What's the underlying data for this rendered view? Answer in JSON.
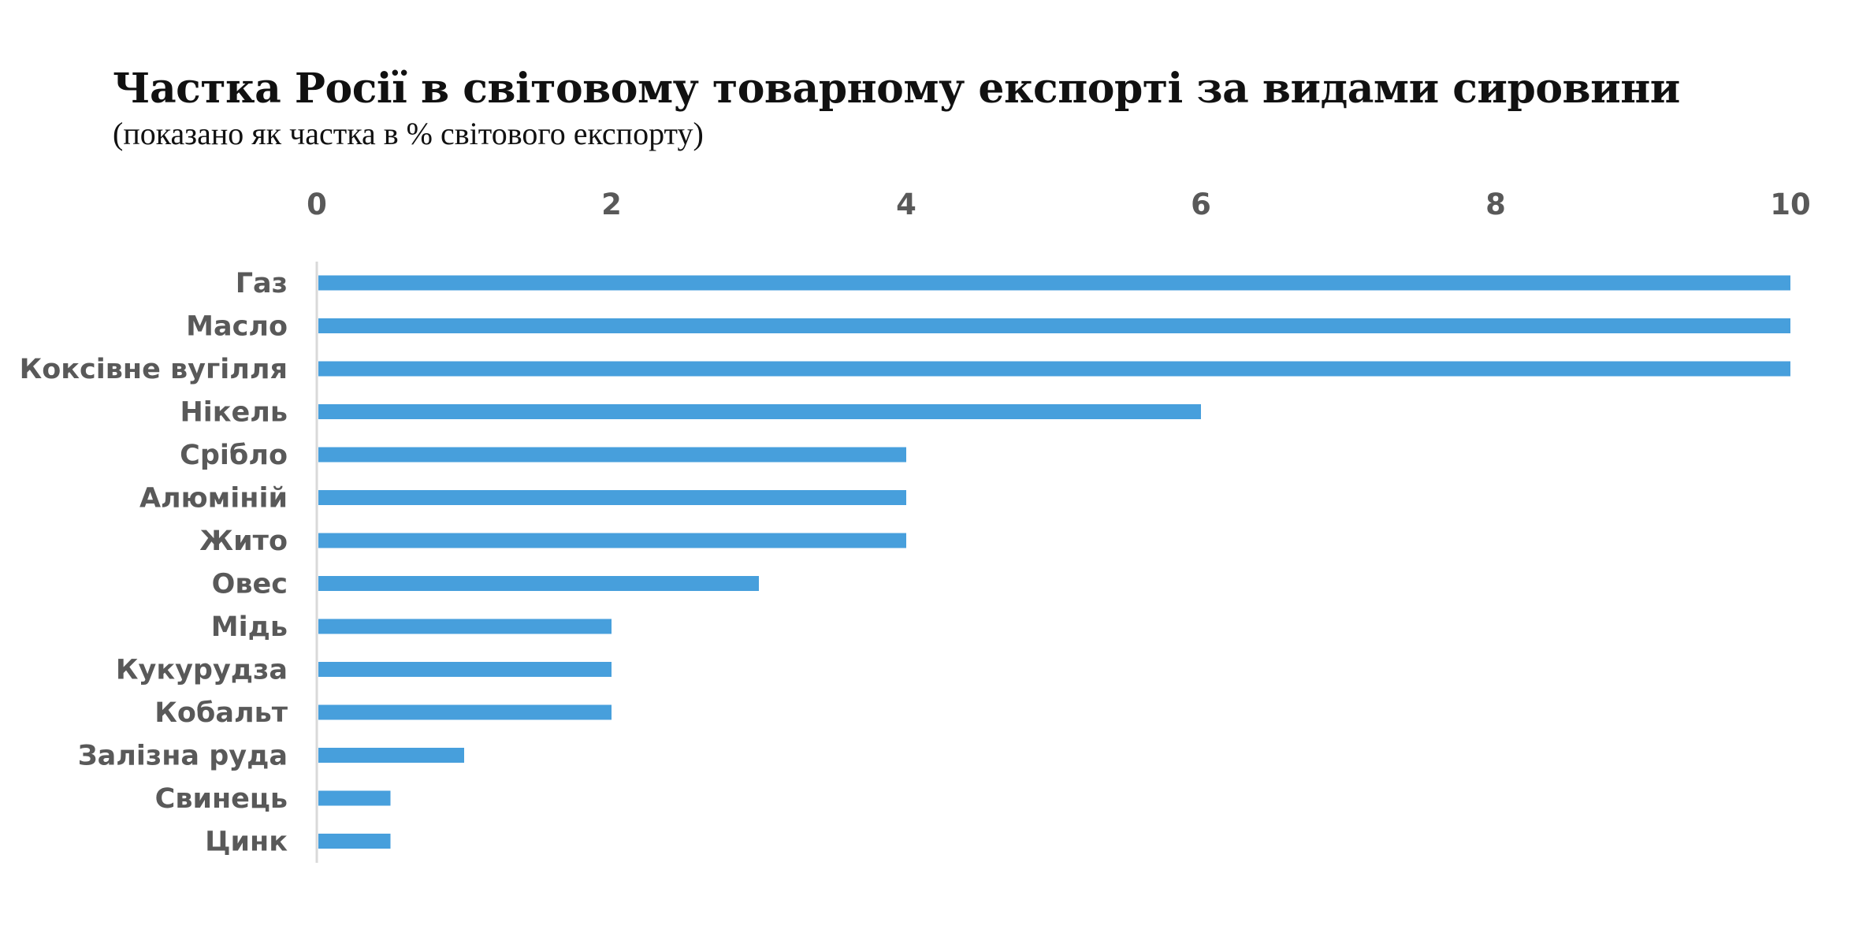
{
  "chart_data": {
    "type": "bar",
    "orientation": "horizontal",
    "title": "Частка Росії в світовому товарному експорті за видами сировини",
    "subtitle": "(показано як частка в % світового експорту)",
    "xlim": [
      0,
      10
    ],
    "x_ticks": [
      "0",
      "2",
      "4",
      "6",
      "8",
      "10"
    ],
    "x_axis_position": "top",
    "grid": false,
    "categories": [
      "Газ",
      "Масло",
      "Коксівне вугілля",
      "Нікель",
      "Срібло",
      "Алюміній",
      "Жито",
      "Овес",
      "Мідь",
      "Кукурудза",
      "Кобальт",
      "Залізна руда",
      "Свинець",
      "Цинк"
    ],
    "values": [
      10,
      10,
      10,
      6,
      4,
      4,
      4,
      3,
      2,
      2,
      2,
      1,
      0.5,
      0.5
    ],
    "bar_color": "#479FDC",
    "label_color": "#595959",
    "axis_line_color": "#D9D9D9"
  }
}
